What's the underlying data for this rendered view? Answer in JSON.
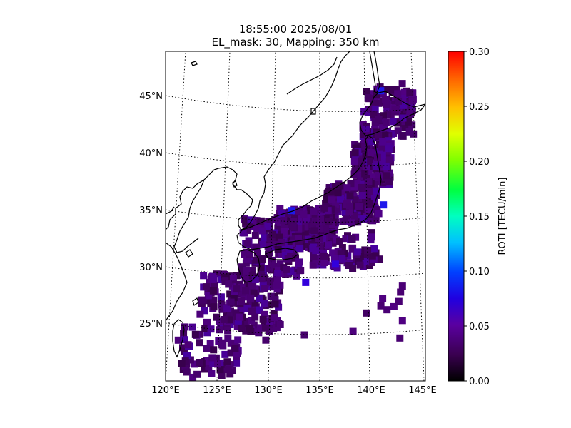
{
  "title": {
    "line1": "18:55:00 2025/08/01",
    "line2": "EL_mask: 30, Mapping: 350 km"
  },
  "map": {
    "projection": "oblique conic",
    "lon_range": [
      120,
      145
    ],
    "lat_range": [
      20,
      49
    ],
    "lon_ticks": [
      "120°E",
      "125°E",
      "130°E",
      "135°E",
      "140°E",
      "145°E"
    ],
    "lat_ticks": [
      "25°N",
      "30°N",
      "35°N",
      "40°N",
      "45°N"
    ],
    "gridlines": "dotted",
    "coastlines": true
  },
  "colorbar": {
    "label": "ROTI [TECU/min]",
    "min": 0.0,
    "max": 0.3,
    "tick_labels": [
      "0.00",
      "0.05",
      "0.10",
      "0.15",
      "0.20",
      "0.25",
      "0.30"
    ],
    "colormap": [
      "#000000",
      "#5a0070",
      "#0000ff",
      "#00ffff",
      "#00ff00",
      "#ffff00",
      "#ff0000"
    ]
  },
  "chart_data": {
    "type": "heatmap",
    "variable": "ROTI",
    "units": "TECU/min",
    "typical_value": 0.03,
    "max_observed": 0.06,
    "cells": [
      {
        "lon": 141.5,
        "lat": 45.8,
        "v": 0.06
      },
      {
        "lon": 142.0,
        "lat": 45.0,
        "v": 0.03
      },
      {
        "lon": 143.0,
        "lat": 44.0,
        "v": 0.03
      },
      {
        "lon": 142.0,
        "lat": 43.0,
        "v": 0.03
      },
      {
        "lon": 140.0,
        "lat": 42.0,
        "v": 0.03
      },
      {
        "lon": 141.0,
        "lat": 40.0,
        "v": 0.03
      },
      {
        "lon": 140.0,
        "lat": 38.0,
        "v": 0.03
      },
      {
        "lon": 141.5,
        "lat": 35.8,
        "v": 0.06
      },
      {
        "lon": 138.0,
        "lat": 36.0,
        "v": 0.03
      },
      {
        "lon": 135.0,
        "lat": 35.0,
        "v": 0.03
      },
      {
        "lon": 132.0,
        "lat": 35.8,
        "v": 0.06
      },
      {
        "lon": 131.0,
        "lat": 33.0,
        "v": 0.03
      },
      {
        "lon": 136.5,
        "lat": 31.0,
        "v": 0.05
      },
      {
        "lon": 133.5,
        "lat": 29.5,
        "v": 0.05
      },
      {
        "lon": 130.0,
        "lat": 31.0,
        "v": 0.03
      },
      {
        "lon": 128.0,
        "lat": 28.0,
        "v": 0.03
      },
      {
        "lon": 125.0,
        "lat": 25.0,
        "v": 0.03
      },
      {
        "lon": 122.0,
        "lat": 21.0,
        "v": 0.02
      },
      {
        "lon": 141.0,
        "lat": 27.0,
        "v": 0.03
      },
      {
        "lon": 143.0,
        "lat": 28.0,
        "v": 0.03
      }
    ]
  }
}
